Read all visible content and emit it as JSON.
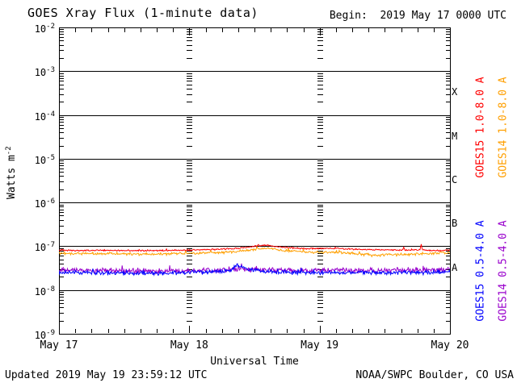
{
  "header": {
    "title": "GOES Xray Flux (1-minute data)",
    "begin_label": "Begin:  2019 May 17 0000 UTC"
  },
  "footer": {
    "updated": "Updated 2019 May 19 23:59:12 UTC",
    "source": "NOAA/SWPC Boulder, CO USA"
  },
  "chart_data": {
    "type": "line",
    "title": "GOES Xray Flux (1-minute data)",
    "xlabel": "Universal Time",
    "ylabel_base": "Watts m",
    "ylabel_exp": "-2",
    "x_range_hours": [
      0,
      72
    ],
    "x_tick_hours": [
      0,
      24,
      48,
      72
    ],
    "x_tick_labels": [
      "May 17",
      "May 18",
      "May 19",
      "May 20"
    ],
    "x_minor_tick_interval_hours": 3,
    "day_boundary_hours": [
      24,
      48
    ],
    "y_log_range": [
      -9,
      -2
    ],
    "y_ticks": [
      {
        "base": "10",
        "exp": "-2"
      },
      {
        "base": "10",
        "exp": "-3"
      },
      {
        "base": "10",
        "exp": "-4"
      },
      {
        "base": "10",
        "exp": "-5"
      },
      {
        "base": "10",
        "exp": "-6"
      },
      {
        "base": "10",
        "exp": "-7"
      },
      {
        "base": "10",
        "exp": "-8"
      },
      {
        "base": "10",
        "exp": "-9"
      }
    ],
    "grid_decades": [
      -3,
      -4,
      -5,
      -6,
      -7,
      -8
    ],
    "flare_classes": [
      {
        "label": "X",
        "mid_log10": -3.5
      },
      {
        "label": "M",
        "mid_log10": -4.5
      },
      {
        "label": "C",
        "mid_log10": -5.5
      },
      {
        "label": "B",
        "mid_log10": -6.5
      },
      {
        "label": "A",
        "mid_log10": -7.5
      }
    ],
    "series": [
      {
        "name": "GOES14 0.5-4.0 A",
        "color": "#9900cc",
        "noise_log": 0.045,
        "legend": {
          "group": "short",
          "col": 1
        },
        "points": [
          [
            0,
            2.8e-08
          ],
          [
            6,
            2.8e-08
          ],
          [
            12,
            2.7e-08
          ],
          [
            18,
            2.7e-08
          ],
          [
            24,
            2.8e-08
          ],
          [
            30,
            2.9e-08
          ],
          [
            33,
            3e-08
          ],
          [
            36,
            2.9e-08
          ],
          [
            42,
            2.8e-08
          ],
          [
            48,
            2.8e-08
          ],
          [
            54,
            2.8e-08
          ],
          [
            60,
            2.8e-08
          ],
          [
            66,
            2.8e-08
          ],
          [
            72,
            2.9e-08
          ]
        ]
      },
      {
        "name": "GOES15 0.5-4.0 A",
        "color": "#0000ff",
        "noise_log": 0.035,
        "legend": {
          "group": "short",
          "col": 0
        },
        "points": [
          [
            0,
            2.5e-08
          ],
          [
            6,
            2.5e-08
          ],
          [
            12,
            2.4e-08
          ],
          [
            18,
            2.4e-08
          ],
          [
            24,
            2.5e-08
          ],
          [
            28,
            2.6e-08
          ],
          [
            31.5,
            2.7e-08
          ],
          [
            32.8,
            3.9e-08
          ],
          [
            33.6,
            3.4e-08
          ],
          [
            35,
            2.9e-08
          ],
          [
            37,
            2.7e-08
          ],
          [
            40,
            2.6e-08
          ],
          [
            44,
            2.5e-08
          ],
          [
            48,
            2.5e-08
          ],
          [
            54,
            2.5e-08
          ],
          [
            60,
            2.5e-08
          ],
          [
            66,
            2.5e-08
          ],
          [
            72,
            2.6e-08
          ]
        ]
      },
      {
        "name": "GOES14 1.0-8.0 A",
        "color": "#ff9f00",
        "noise_log": 0.022,
        "legend": {
          "group": "long",
          "col": 1
        },
        "points": [
          [
            0,
            6.9e-08
          ],
          [
            4,
            6.8e-08
          ],
          [
            8,
            6.8e-08
          ],
          [
            12,
            6.7e-08
          ],
          [
            16,
            6.6e-08
          ],
          [
            20,
            6.7e-08
          ],
          [
            24,
            6.9e-08
          ],
          [
            28,
            7.1e-08
          ],
          [
            32,
            7.4e-08
          ],
          [
            35,
            8.2e-08
          ],
          [
            37,
            8.8e-08
          ],
          [
            38.5,
            9e-08
          ],
          [
            40,
            8.4e-08
          ],
          [
            42,
            7.9e-08
          ],
          [
            44,
            7.6e-08
          ],
          [
            46,
            7.4e-08
          ],
          [
            48,
            7.3e-08
          ],
          [
            50,
            7.4e-08
          ],
          [
            52,
            7.2e-08
          ],
          [
            54,
            6.9e-08
          ],
          [
            56,
            6.4e-08
          ],
          [
            57,
            6.9e-08
          ],
          [
            57.6,
            5.9e-08
          ],
          [
            58.2,
            6.2e-08
          ],
          [
            60,
            6.3e-08
          ],
          [
            62,
            6.4e-08
          ],
          [
            64,
            6.5e-08
          ],
          [
            66,
            6.7e-08
          ],
          [
            68,
            6.8e-08
          ],
          [
            70,
            7e-08
          ],
          [
            72,
            7.3e-08
          ]
        ]
      },
      {
        "name": "GOES15 1.0-8.0 A",
        "color": "#ff0000",
        "noise_log": 0.012,
        "legend": {
          "group": "long",
          "col": 0
        },
        "points": [
          [
            0,
            8.2e-08
          ],
          [
            4,
            8e-08
          ],
          [
            8,
            8.1e-08
          ],
          [
            12,
            8e-08
          ],
          [
            16,
            7.9e-08
          ],
          [
            20,
            8e-08
          ],
          [
            24,
            8.2e-08
          ],
          [
            28,
            8.4e-08
          ],
          [
            32,
            8.8e-08
          ],
          [
            35,
            9.6e-08
          ],
          [
            37,
            1.03e-07
          ],
          [
            38.5,
            1.05e-07
          ],
          [
            40,
            9.8e-08
          ],
          [
            42,
            9.3e-08
          ],
          [
            44,
            9e-08
          ],
          [
            46,
            8.8e-08
          ],
          [
            48,
            8.8e-08
          ],
          [
            50,
            9e-08
          ],
          [
            52,
            8.8e-08
          ],
          [
            54,
            8.6e-08
          ],
          [
            56,
            8.4e-08
          ],
          [
            58,
            8.3e-08
          ],
          [
            60,
            8.3e-08
          ],
          [
            62,
            8.2e-08
          ],
          [
            63.3,
            8.2e-08
          ],
          [
            63.5,
            9.5e-08
          ],
          [
            63.7,
            8.2e-08
          ],
          [
            65,
            8.2e-08
          ],
          [
            66.5,
            8.2e-08
          ],
          [
            66.7,
            1.15e-07
          ],
          [
            66.9,
            8.2e-08
          ],
          [
            68,
            8.1e-08
          ],
          [
            70,
            8e-08
          ],
          [
            72,
            8.2e-08
          ]
        ]
      }
    ],
    "legend_position": "right",
    "grid": "decade horizontal lines; tick-dash columns at internal day boundaries"
  }
}
